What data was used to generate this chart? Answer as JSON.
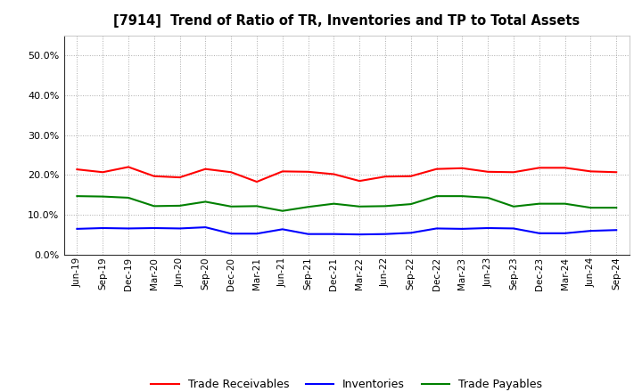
{
  "title": "[7914]  Trend of Ratio of TR, Inventories and TP to Total Assets",
  "x_labels": [
    "Jun-19",
    "Sep-19",
    "Dec-19",
    "Mar-20",
    "Jun-20",
    "Sep-20",
    "Dec-20",
    "Mar-21",
    "Jun-21",
    "Sep-21",
    "Dec-21",
    "Mar-22",
    "Jun-22",
    "Sep-22",
    "Dec-22",
    "Mar-23",
    "Jun-23",
    "Sep-23",
    "Dec-23",
    "Mar-24",
    "Jun-24",
    "Sep-24"
  ],
  "trade_receivables": [
    0.214,
    0.207,
    0.22,
    0.197,
    0.194,
    0.215,
    0.207,
    0.183,
    0.209,
    0.208,
    0.202,
    0.185,
    0.196,
    0.197,
    0.215,
    0.217,
    0.208,
    0.207,
    0.218,
    0.218,
    0.209,
    0.207
  ],
  "inventories": [
    0.065,
    0.067,
    0.066,
    0.067,
    0.066,
    0.069,
    0.053,
    0.053,
    0.064,
    0.052,
    0.052,
    0.051,
    0.052,
    0.055,
    0.066,
    0.065,
    0.067,
    0.066,
    0.054,
    0.054,
    0.06,
    0.062
  ],
  "trade_payables": [
    0.147,
    0.146,
    0.143,
    0.122,
    0.123,
    0.133,
    0.121,
    0.122,
    0.11,
    0.12,
    0.128,
    0.121,
    0.122,
    0.127,
    0.147,
    0.147,
    0.143,
    0.121,
    0.128,
    0.128,
    0.118,
    0.118
  ],
  "tr_color": "#FF0000",
  "inv_color": "#0000FF",
  "tp_color": "#008000",
  "ylim": [
    0.0,
    0.55
  ],
  "yticks": [
    0.0,
    0.1,
    0.2,
    0.3,
    0.4,
    0.5
  ],
  "legend_labels": [
    "Trade Receivables",
    "Inventories",
    "Trade Payables"
  ],
  "bg_color": "#FFFFFF",
  "grid_color": "#AAAAAA"
}
